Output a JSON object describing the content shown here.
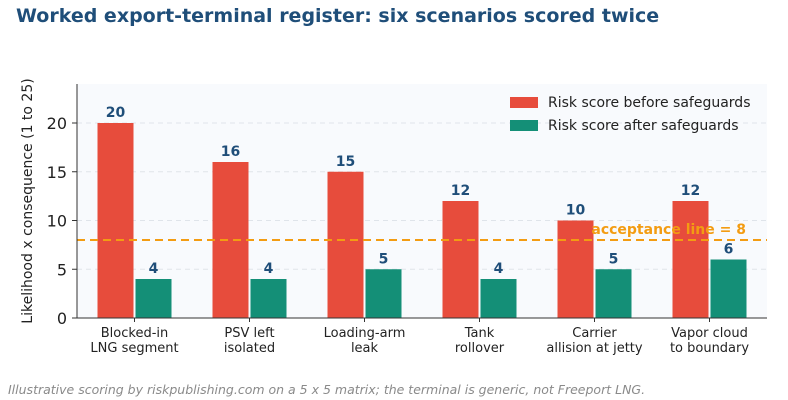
{
  "chart_data": {
    "type": "bar",
    "title": "Worked export-terminal register: six scenarios scored twice",
    "ylabel": "Likelihood x consequence (1 to 25)",
    "xlabel": "",
    "ylim": [
      0,
      24
    ],
    "yticks": [
      0,
      5,
      10,
      15,
      20
    ],
    "categories": [
      [
        "Blocked-in",
        "LNG segment"
      ],
      [
        "PSV left",
        "isolated"
      ],
      [
        "Loading-arm",
        "leak"
      ],
      [
        "Tank",
        "rollover"
      ],
      [
        "Carrier",
        "allision at jetty"
      ],
      [
        "Vapor cloud",
        "to boundary"
      ]
    ],
    "series": [
      {
        "name": "Risk score before safeguards",
        "color": "#e74c3c",
        "values": [
          20,
          16,
          15,
          12,
          10,
          12
        ]
      },
      {
        "name": "Risk score after safeguards",
        "color": "#148f77",
        "values": [
          4,
          4,
          5,
          4,
          5,
          6
        ]
      }
    ],
    "reference_line": {
      "value": 8,
      "label": "acceptance line = 8",
      "color": "#f39c12",
      "style": "dashed"
    },
    "grid": "horizontal dashed",
    "legend": "top-right",
    "value_label_color": "#1f4e79"
  },
  "footnote": "Illustrative scoring by riskpublishing.com on a 5 x 5 matrix; the terminal is generic, not Freeport LNG."
}
